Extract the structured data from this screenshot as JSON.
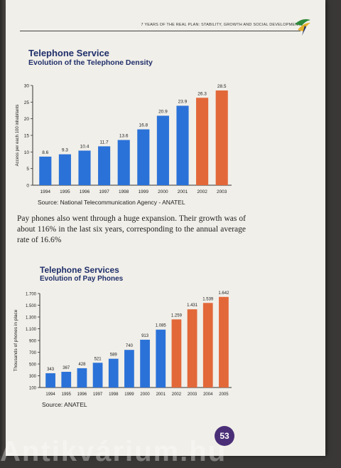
{
  "header": {
    "running_title": "7 Years of the Real Plan: Stability, Growth and Social Development"
  },
  "page_number": "53",
  "watermark": "Antikvárium.hu",
  "paragraph": "Pay phones also went through a huge expansion. Their growth was of about 116% in the last six years, corresponding to the annual average rate of 16.6%",
  "chart_data": [
    {
      "type": "bar",
      "title": "Telephone Service",
      "subtitle": "Evolution of the Telephone Density",
      "ylabel": "Access per each 100 inhabitants",
      "xlabel": "",
      "categories": [
        "1994",
        "1995",
        "1996",
        "1997",
        "1998",
        "1999",
        "2000",
        "2001",
        "2002",
        "2003"
      ],
      "values": [
        8.6,
        9.3,
        10.4,
        11.7,
        13.6,
        16.8,
        20.9,
        23.9,
        26.3,
        28.5
      ],
      "value_labels": [
        "8.6",
        "9.3",
        "10.4",
        "11.7",
        "13.6",
        "16.8",
        "20.9",
        "23.9",
        "26.3",
        "28.5"
      ],
      "yticks": [
        0,
        5,
        10,
        15,
        20,
        25,
        30
      ],
      "ylim": [
        0,
        30
      ],
      "grid": false,
      "colors": [
        "#2b72d8",
        "#2b72d8",
        "#2b72d8",
        "#2b72d8",
        "#2b72d8",
        "#2b72d8",
        "#2b72d8",
        "#2b72d8",
        "#e2683a",
        "#e2683a"
      ],
      "source": "Source: National Telecommunication Agency - ANATEL"
    },
    {
      "type": "bar",
      "title": "Telephone Services",
      "subtitle": "Evolution of Pay Phones",
      "ylabel": "Thousands of phones in place",
      "xlabel": "",
      "categories": [
        "1994",
        "1995",
        "1996",
        "1997",
        "1998",
        "1999",
        "2000",
        "2001",
        "2002",
        "2003",
        "2004",
        "2005"
      ],
      "values": [
        343,
        367,
        428,
        521,
        589,
        740,
        913,
        1085,
        1259,
        1431,
        1539,
        1642
      ],
      "value_labels": [
        "343",
        "367",
        "428",
        "521",
        "589",
        "740",
        "913",
        "1.085",
        "1.259",
        "1.431",
        "1.539",
        "1.642"
      ],
      "yticks": [
        100,
        300,
        500,
        700,
        900,
        1100,
        1300,
        1500,
        1700
      ],
      "ytick_labels": [
        "100",
        "300",
        "500",
        "700",
        "900",
        "1.100",
        "1.300",
        "1.500",
        "1.700"
      ],
      "ylim": [
        100,
        1700
      ],
      "grid": false,
      "colors": [
        "#2b72d8",
        "#2b72d8",
        "#2b72d8",
        "#2b72d8",
        "#2b72d8",
        "#2b72d8",
        "#2b72d8",
        "#2b72d8",
        "#e2683a",
        "#e2683a",
        "#e2683a",
        "#e2683a"
      ],
      "source": "Source: ANATEL"
    }
  ]
}
